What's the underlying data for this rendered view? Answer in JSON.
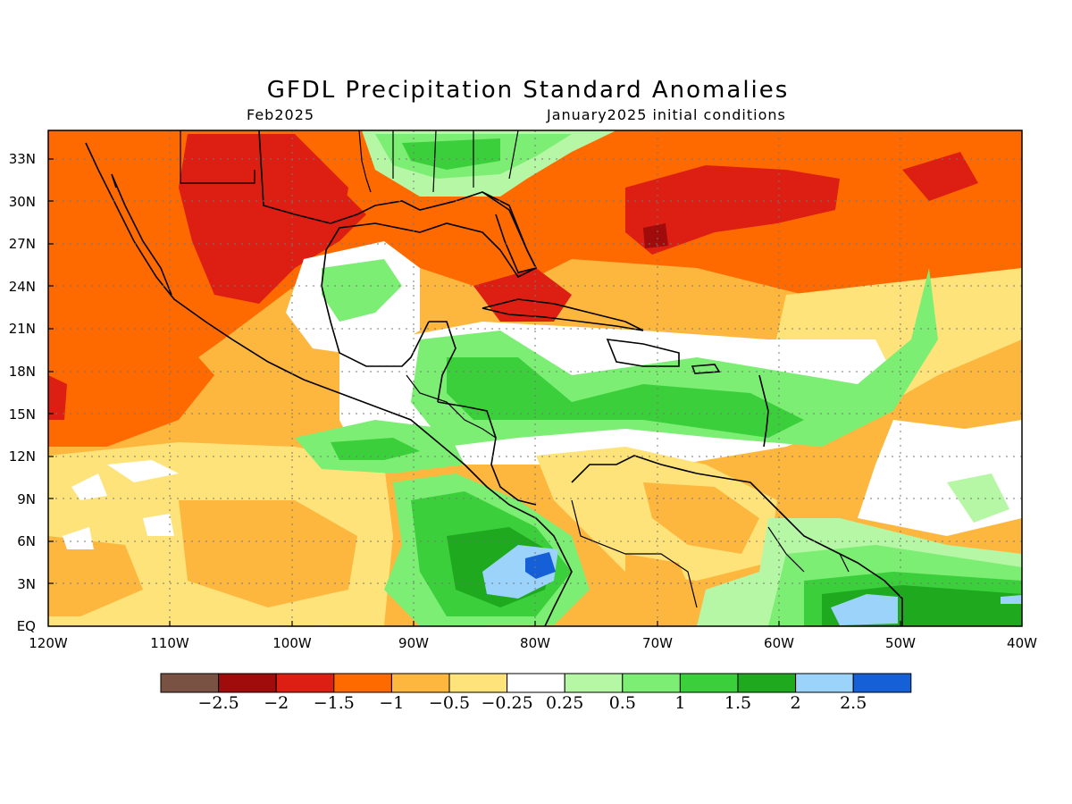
{
  "title": "GFDL Precipitation Standard Anomalies",
  "valid_month": "Feb2025",
  "initial_conditions": "January2025 initial conditions",
  "map": {
    "lat_ticks": [
      "33N",
      "30N",
      "27N",
      "24N",
      "21N",
      "18N",
      "15N",
      "12N",
      "9N",
      "6N",
      "3N",
      "EQ"
    ],
    "lon_ticks": [
      "120W",
      "110W",
      "100W",
      "90W",
      "80W",
      "70W",
      "60W",
      "50W",
      "40W"
    ],
    "lat_range": [
      0,
      35
    ],
    "lon_range": [
      -120,
      -40
    ],
    "grid": "dotted"
  },
  "colorbar": {
    "colors": [
      "#7a5244",
      "#a00b0b",
      "#dd1e12",
      "#ff6a00",
      "#fdb73f",
      "#fde37a",
      "#ffffff",
      "#b6f7a6",
      "#7bee73",
      "#3bcf3b",
      "#1ea91e",
      "#9bd3fb",
      "#1560d6"
    ],
    "labels": [
      "−2.5",
      "−2",
      "−1.5",
      "−1",
      "−0.5",
      "−0.25",
      "0.25",
      "0.5",
      "1",
      "1.5",
      "2",
      "2.5"
    ]
  }
}
